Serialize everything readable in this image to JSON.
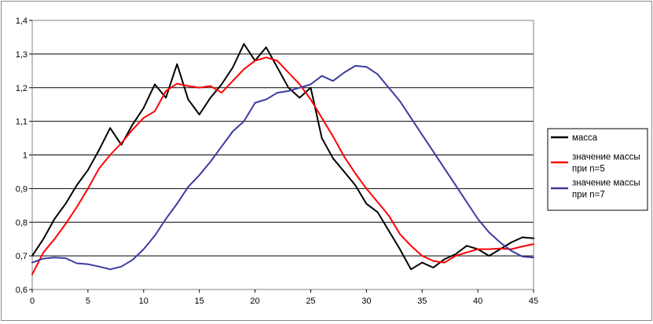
{
  "chart_data": {
    "type": "line",
    "title": "",
    "xlabel": "",
    "ylabel": "",
    "xlim": [
      0,
      45
    ],
    "ylim": [
      0.6,
      1.4
    ],
    "x_ticks": [
      "0",
      "5",
      "10",
      "15",
      "20",
      "25",
      "30",
      "35",
      "40",
      "45"
    ],
    "y_ticks": [
      "0,6",
      "0,7",
      "0,8",
      "0,9",
      "1",
      "1,1",
      "1,2",
      "1,3",
      "1,4"
    ],
    "grid": "horizontal",
    "legend_position": "right",
    "series": [
      {
        "name": "масса",
        "color": "#000000",
        "x": [
          0,
          1,
          2,
          3,
          4,
          5,
          6,
          7,
          8,
          9,
          10,
          11,
          12,
          13,
          14,
          15,
          16,
          17,
          18,
          19,
          20,
          21,
          22,
          23,
          24,
          25,
          26,
          27,
          28,
          29,
          30,
          31,
          32,
          33,
          34,
          35,
          36,
          37,
          38,
          39,
          40,
          41,
          42,
          43,
          44,
          45
        ],
        "values": [
          0.7,
          0.75,
          0.81,
          0.855,
          0.91,
          0.955,
          1.015,
          1.08,
          1.03,
          1.09,
          1.14,
          1.21,
          1.17,
          1.27,
          1.165,
          1.12,
          1.17,
          1.21,
          1.26,
          1.33,
          1.28,
          1.32,
          1.26,
          1.2,
          1.17,
          1.2,
          1.05,
          0.99,
          0.95,
          0.91,
          0.855,
          0.83,
          0.775,
          0.72,
          0.66,
          0.68,
          0.665,
          0.69,
          0.705,
          0.73,
          0.72,
          0.7,
          0.72,
          0.74,
          0.755,
          0.752
        ]
      },
      {
        "name": "значение массы при n=5",
        "color": "#ff0000",
        "x": [
          0,
          1,
          2,
          3,
          4,
          5,
          6,
          7,
          8,
          9,
          10,
          11,
          12,
          13,
          14,
          15,
          16,
          17,
          18,
          19,
          20,
          21,
          22,
          23,
          24,
          25,
          26,
          27,
          28,
          29,
          30,
          31,
          32,
          33,
          34,
          35,
          36,
          37,
          38,
          39,
          40,
          41,
          42,
          43,
          44,
          45
        ],
        "values": [
          0.645,
          0.71,
          0.75,
          0.795,
          0.845,
          0.9,
          0.96,
          1.0,
          1.035,
          1.075,
          1.11,
          1.13,
          1.19,
          1.212,
          1.205,
          1.2,
          1.205,
          1.185,
          1.22,
          1.255,
          1.28,
          1.29,
          1.28,
          1.245,
          1.21,
          1.165,
          1.11,
          1.055,
          0.995,
          0.945,
          0.9,
          0.86,
          0.82,
          0.765,
          0.73,
          0.7,
          0.685,
          0.68,
          0.7,
          0.71,
          0.72,
          0.72,
          0.722,
          0.72,
          0.728,
          0.735
        ]
      },
      {
        "name": "значение массы при n=7",
        "color": "#3b3ba0",
        "x": [
          0,
          1,
          2,
          3,
          4,
          5,
          6,
          7,
          8,
          9,
          10,
          11,
          12,
          13,
          14,
          15,
          16,
          17,
          18,
          19,
          20,
          21,
          22,
          23,
          24,
          25,
          26,
          27,
          28,
          29,
          30,
          31,
          32,
          33,
          34,
          35,
          36,
          37,
          38,
          39,
          40,
          41,
          42,
          43,
          44,
          45
        ],
        "values": [
          0.68,
          0.692,
          0.695,
          0.693,
          0.678,
          0.675,
          0.668,
          0.66,
          0.668,
          0.688,
          0.72,
          0.76,
          0.81,
          0.855,
          0.905,
          0.94,
          0.98,
          1.025,
          1.07,
          1.1,
          1.155,
          1.165,
          1.185,
          1.19,
          1.2,
          1.21,
          1.235,
          1.22,
          1.245,
          1.265,
          1.262,
          1.24,
          1.2,
          1.16,
          1.11,
          1.06,
          1.01,
          0.96,
          0.91,
          0.86,
          0.81,
          0.77,
          0.74,
          0.715,
          0.698,
          0.695
        ]
      }
    ]
  }
}
